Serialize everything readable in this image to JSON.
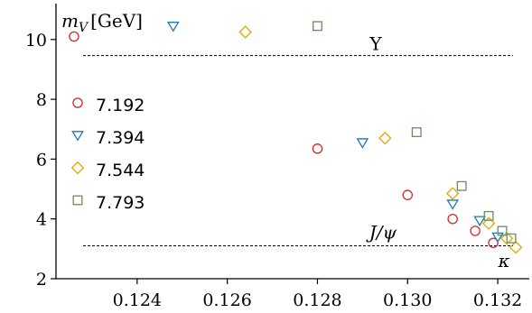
{
  "chart_data": {
    "type": "scatter",
    "ylabel_parts": {
      "symbol": "m",
      "subscript": "V",
      "unit": "[GeV]"
    },
    "xlabel": "κ",
    "xlim": [
      0.1222,
      0.1327
    ],
    "ylim": [
      2.0,
      11.2
    ],
    "x_ticks": [
      0.124,
      0.126,
      0.128,
      0.13,
      0.132
    ],
    "x_tick_labels": [
      "0.124",
      "0.126",
      "0.128",
      "0.130",
      "0.132"
    ],
    "y_ticks": [
      2,
      4,
      6,
      8,
      10
    ],
    "y_tick_labels": [
      "2",
      "4",
      "6",
      "8",
      "10"
    ],
    "grid": false,
    "legend_position": "left",
    "reference_lines": [
      {
        "label": "Υ",
        "y": 9.46
      },
      {
        "label": "J/ψ",
        "y": 3.1
      }
    ],
    "series": [
      {
        "name": "7.192",
        "marker": "circle",
        "color": "#d62728",
        "points": [
          [
            0.1226,
            10.1
          ],
          [
            0.128,
            6.35
          ],
          [
            0.13,
            4.8
          ],
          [
            0.131,
            4.0
          ],
          [
            0.1315,
            3.6
          ],
          [
            0.1319,
            3.2
          ]
        ]
      },
      {
        "name": "7.394",
        "marker": "triangle-down",
        "color": "#1f77b4",
        "points": [
          [
            0.1248,
            10.45
          ],
          [
            0.129,
            6.55
          ],
          [
            0.131,
            4.5
          ],
          [
            0.1316,
            3.95
          ],
          [
            0.132,
            3.4
          ]
        ]
      },
      {
        "name": "7.544",
        "marker": "diamond",
        "color": "#e6a500",
        "points": [
          [
            0.1264,
            10.25
          ],
          [
            0.1295,
            6.7
          ],
          [
            0.131,
            4.85
          ],
          [
            0.1318,
            3.85
          ],
          [
            0.1322,
            3.35
          ],
          [
            0.1324,
            3.05
          ]
        ]
      },
      {
        "name": "7.793",
        "marker": "square",
        "color": "#6b8e5a",
        "points": [
          [
            0.128,
            10.45
          ],
          [
            0.1302,
            6.9
          ],
          [
            0.1312,
            5.1
          ],
          [
            0.1318,
            4.1
          ],
          [
            0.1321,
            3.6
          ],
          [
            0.1323,
            3.35
          ]
        ]
      }
    ]
  }
}
